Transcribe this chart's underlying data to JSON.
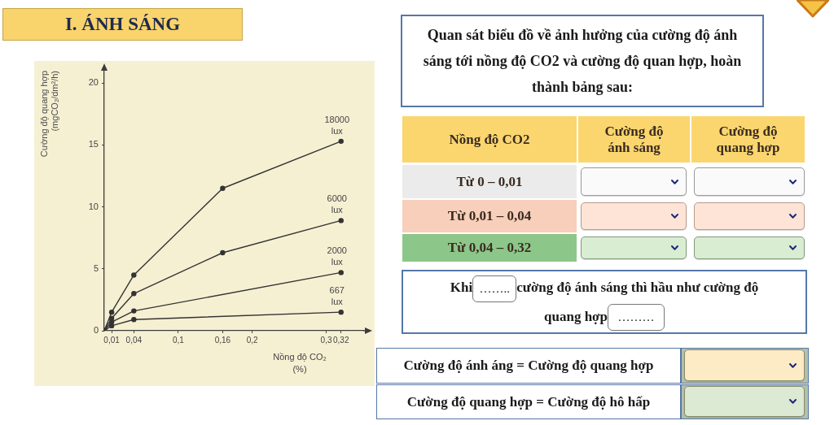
{
  "chart_data": [
    {
      "type": "line",
      "title": "I. ÁNH SÁNG",
      "xlabel": "Nồng độ CO₂\n(%)",
      "ylabel": "Cường độ quang hợp\n(mgCO₂/dm²/h)",
      "series": [
        {
          "name": "18000 lux",
          "color": "#333333",
          "x": [
            0,
            0.01,
            0.04,
            0.16,
            0.32
          ],
          "values": [
            0,
            1.5,
            4.5,
            11.5,
            15.3
          ]
        },
        {
          "name": "6000 lux",
          "color": "#333333",
          "x": [
            0,
            0.01,
            0.04,
            0.16,
            0.32
          ],
          "values": [
            0,
            1.0,
            3.0,
            6.3,
            8.9
          ]
        },
        {
          "name": "2000 lux",
          "color": "#333333",
          "x": [
            0,
            0.01,
            0.04,
            0.32
          ],
          "values": [
            0,
            0.7,
            1.6,
            4.7
          ]
        },
        {
          "name": "667 lux",
          "color": "#333333",
          "x": [
            0,
            0.01,
            0.04,
            0.32
          ],
          "values": [
            0,
            0.4,
            0.9,
            1.5
          ]
        }
      ],
      "xlim": [
        0,
        0.35
      ],
      "ylim": [
        0,
        21
      ],
      "xticks": [
        {
          "value": 0.01,
          "label": "0,01"
        },
        {
          "value": 0.04,
          "label": "0,04"
        },
        {
          "value": 0.1,
          "label": "0,1"
        },
        {
          "value": 0.16,
          "label": "0,16"
        },
        {
          "value": 0.2,
          "label": "0,2"
        },
        {
          "value": 0.3,
          "label": "0,3"
        },
        {
          "value": 0.32,
          "label": "0,32"
        }
      ],
      "yticks": [
        0,
        5,
        10,
        15,
        20
      ],
      "marker": "circle",
      "line_style": "solid"
    },
    {
      "type": "other",
      "title": "Quan sát biểu đồ về ảnh hưởng của cường độ ánh sáng tới nồng độ CO2 và cường độ quan hợp, hoàn thành bảng sau:",
      "annotations": [
        "Nồng độ CO2",
        "Cường độ ánh sáng",
        "Cường độ quang hợp",
        "Từ 0 – 0,01",
        "Từ 0,01 – 0,04",
        "Từ 0,04 – 0,32",
        "Khi",
        "……..",
        "cường độ ánh sáng thì hầu như cường độ quang hợp",
        "………",
        "Cường độ ánh áng = Cường độ quang hợp",
        "Cường độ quang hợp = Cường độ hô hấp"
      ]
    }
  ]
}
